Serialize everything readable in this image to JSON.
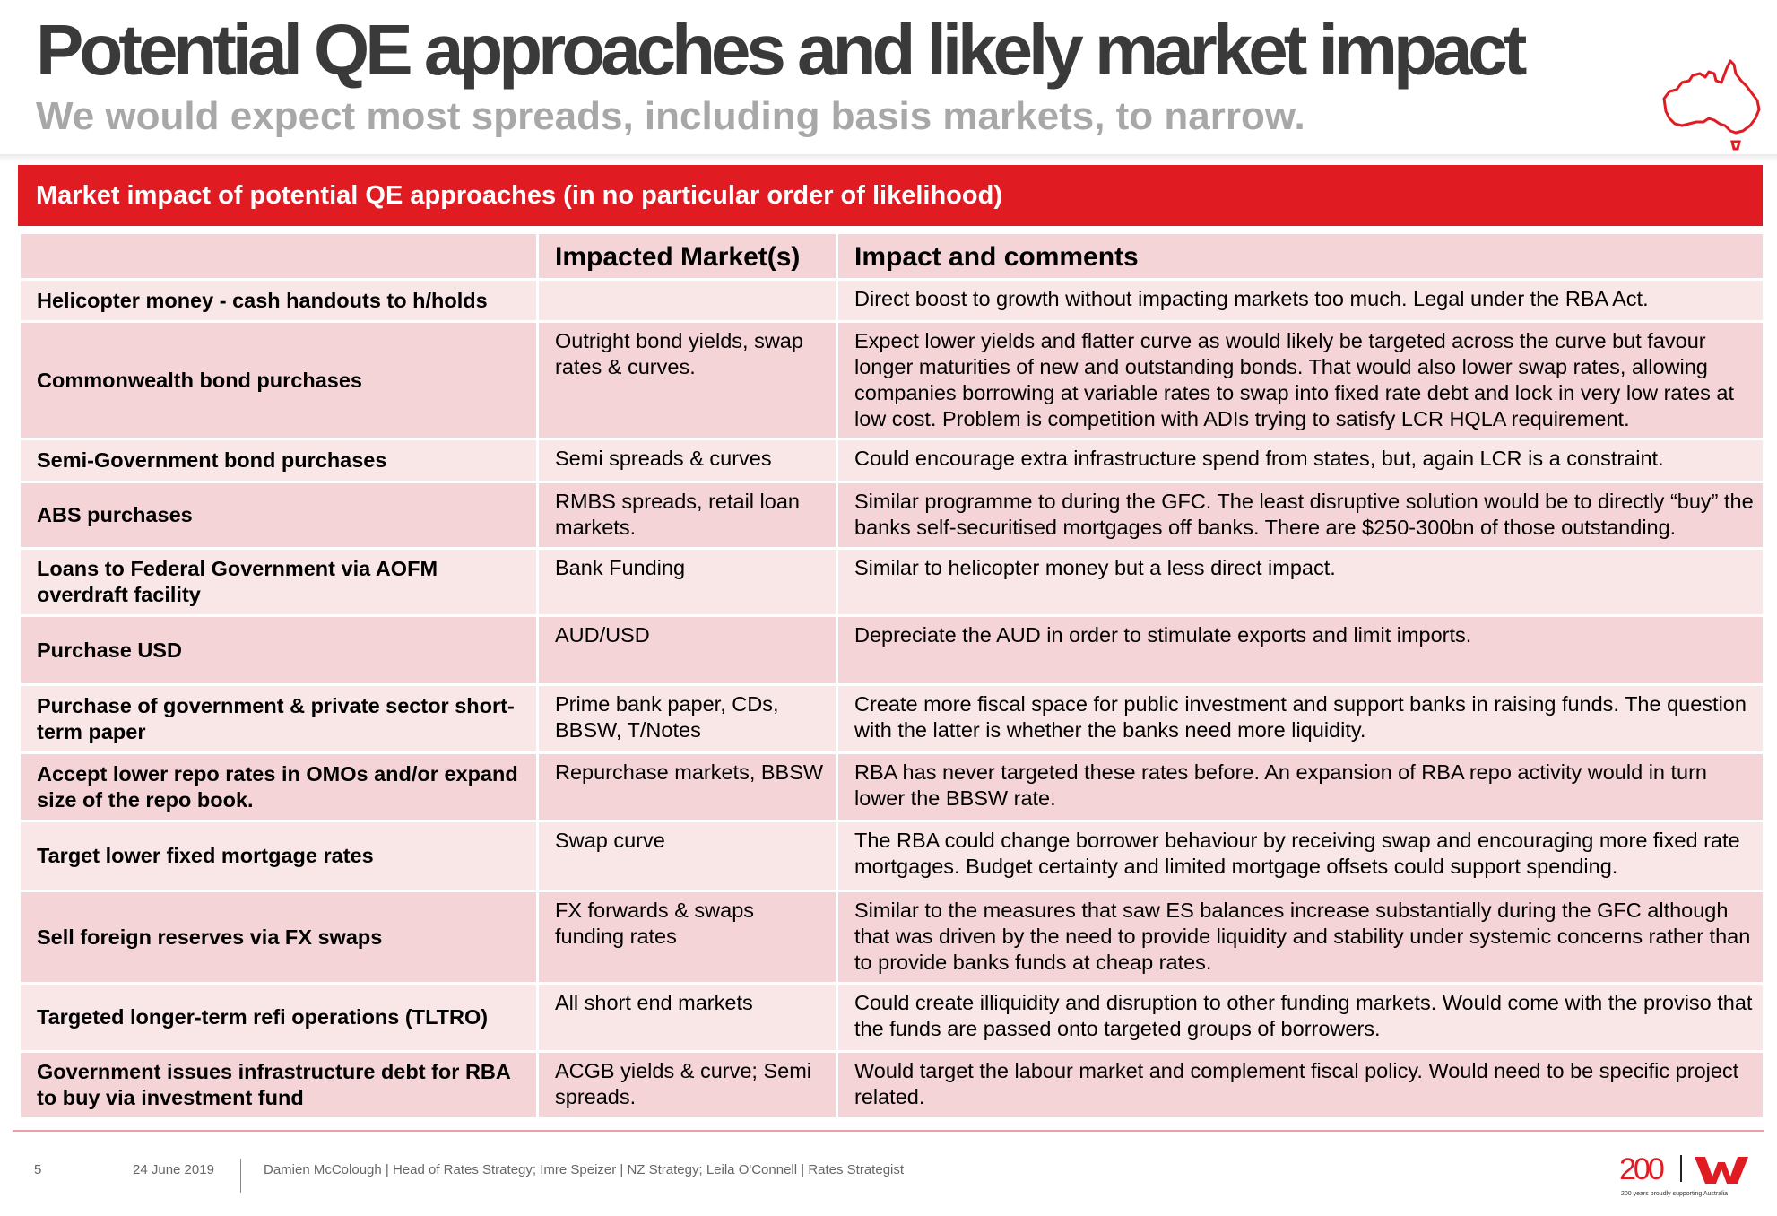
{
  "header": {
    "title": "Potential QE approaches and likely market impact",
    "subtitle": "We would expect most spreads, including basis markets, to narrow."
  },
  "banner": {
    "text": "Market impact of potential QE approaches (in no particular order of likelihood)"
  },
  "table": {
    "columns": [
      "",
      "Impacted Market(s)",
      "Impact and comments"
    ],
    "rows": [
      {
        "approach": "Helicopter money  - cash handouts to h/holds",
        "markets": "",
        "comments": "Direct boost to growth without impacting markets too much. Legal under the RBA Act."
      },
      {
        "approach": "Commonwealth bond purchases",
        "markets": "Outright bond yields, swap rates & curves.",
        "comments": "Expect lower yields and flatter curve as would likely be targeted across the curve but favour longer maturities of new and outstanding bonds. That would also lower swap rates, allowing companies borrowing at variable rates to swap into fixed rate debt and lock in very low rates at low cost. Problem is competition with ADIs trying to satisfy LCR HQLA requirement."
      },
      {
        "approach": "Semi-Government bond purchases",
        "markets": "Semi spreads & curves",
        "comments": "Could encourage extra infrastructure spend from states, but, again LCR is a constraint."
      },
      {
        "approach": "ABS purchases",
        "markets": "RMBS spreads, retail loan markets.",
        "comments": "Similar programme to during the GFC. The least disruptive solution would be to directly “buy” the banks self-securitised mortgages off banks. There are $250-300bn of those outstanding."
      },
      {
        "approach": "Loans to Federal Government via AOFM overdraft facility",
        "markets": "Bank Funding",
        "comments": "Similar to helicopter money but a less direct impact."
      },
      {
        "approach": "Purchase USD",
        "markets": "AUD/USD",
        "comments": "Depreciate the AUD in order to stimulate exports and limit imports."
      },
      {
        "approach": "Purchase of government & private sector short-term paper",
        "markets": "Prime bank paper, CDs, BBSW, T/Notes",
        "comments": "Create more fiscal space for public investment and support banks in raising funds. The question with the latter is whether the banks need more liquidity."
      },
      {
        "approach": "Accept lower repo rates in OMOs and/or expand size of the repo book.",
        "markets": "Repurchase markets, BBSW",
        "comments": "RBA has never targeted these rates before. An expansion of RBA repo activity would in turn lower the BBSW rate."
      },
      {
        "approach": "Target lower fixed mortgage rates",
        "markets": "Swap curve",
        "comments": "The RBA could change borrower behaviour by receiving swap and encouraging more fixed rate mortgages. Budget certainty and limited mortgage offsets could support spending."
      },
      {
        "approach": "Sell foreign reserves via FX swaps",
        "markets": "FX forwards & swaps funding rates",
        "comments": "Similar to the measures that saw ES balances increase substantially during the GFC although that was driven by the need to provide liquidity and stability under systemic concerns rather than to provide banks funds at cheap rates."
      },
      {
        "approach": "Targeted longer-term refi operations (TLTRO)",
        "markets": "All short end markets",
        "comments": "Could create illiquidity and disruption to other funding markets. Would come with the proviso that the funds are passed onto targeted groups of borrowers."
      },
      {
        "approach": "Government issues infrastructure debt for RBA to buy via investment fund",
        "markets": "ACGB yields & curve; Semi spreads.",
        "comments": "Would target the labour market and complement fiscal policy. Would need to be specific project related."
      }
    ]
  },
  "footer": {
    "page_number": "5",
    "date": "24 June 2019",
    "authors": "Damien McColough | Head of Rates Strategy; Imre Speizer | NZ Strategy; Leila O'Connell | Rates Strategist",
    "logo_number": "200",
    "logo_tagline": "200 years proudly supporting Australia"
  },
  "colors": {
    "brand_red": "#e11b22",
    "row_dark": "#f4d4d6",
    "row_light": "#f9e6e7",
    "title_gray": "#3a3a3a",
    "subtitle_gray": "#a8a8a8"
  }
}
